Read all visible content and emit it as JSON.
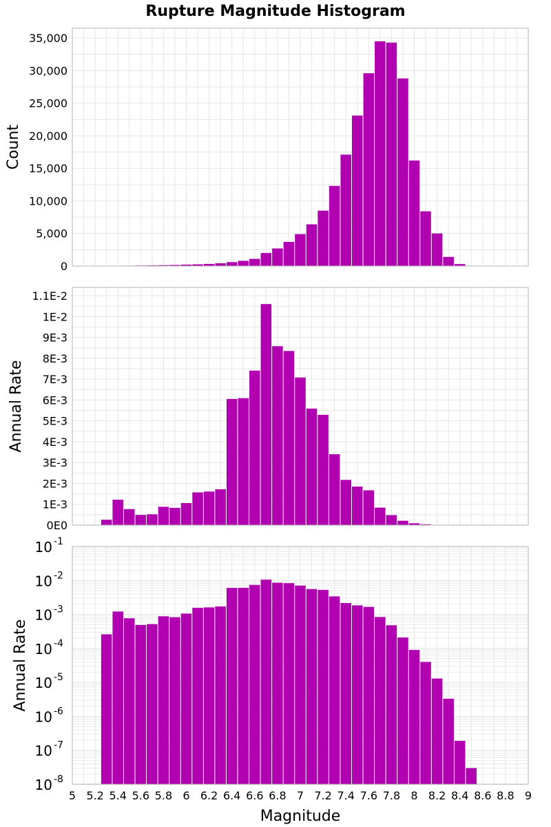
{
  "title": "Rupture Magnitude Histogram",
  "colors": {
    "bar": "#B000B0",
    "grid": "#E6E6E6",
    "frame": "#B4B4B4",
    "bar_edge": "#FFFFFF"
  },
  "chart_data": [
    {
      "type": "bar",
      "title": "Rupture Magnitude Histogram",
      "xlabel": "",
      "ylabel": "Count",
      "xlim": [
        5,
        9
      ],
      "ylim": [
        0,
        36500
      ],
      "yscale": "linear",
      "ytick_values": [
        0,
        5000,
        10000,
        15000,
        20000,
        25000,
        30000,
        35000
      ],
      "ytick_labels": [
        "0",
        "5,000",
        "10,000",
        "15,000",
        "20,000",
        "25,000",
        "30,000",
        "35,000"
      ],
      "bin_width": 0.1,
      "bin_centers": [
        5.3,
        5.4,
        5.5,
        5.6,
        5.7,
        5.8,
        5.9,
        6.0,
        6.1,
        6.2,
        6.3,
        6.4,
        6.5,
        6.6,
        6.7,
        6.8,
        6.9,
        7.0,
        7.1,
        7.2,
        7.3,
        7.4,
        7.5,
        7.6,
        7.7,
        7.8,
        7.9,
        8.0,
        8.1,
        8.2,
        8.3,
        8.4,
        8.5
      ],
      "values": [
        10,
        40,
        60,
        80,
        100,
        130,
        160,
        220,
        260,
        320,
        420,
        600,
        800,
        1100,
        2000,
        2700,
        3700,
        4900,
        6400,
        8500,
        12300,
        17100,
        23100,
        29600,
        34500,
        34300,
        28800,
        16200,
        8400,
        5000,
        1400,
        300,
        10
      ]
    },
    {
      "type": "bar",
      "xlabel": "",
      "ylabel": "Annual Rate",
      "xlim": [
        5,
        9
      ],
      "ylim": [
        0,
        0.0114
      ],
      "yscale": "linear",
      "ytick_values": [
        0,
        0.001,
        0.002,
        0.003,
        0.004,
        0.005,
        0.006,
        0.007,
        0.008,
        0.009,
        0.01,
        0.011
      ],
      "ytick_labels": [
        "0E0",
        "1E-3",
        "2E-3",
        "3E-3",
        "4E-3",
        "5E-3",
        "6E-3",
        "7E-3",
        "8E-3",
        "9E-3",
        "1E-2",
        "1.1E-2"
      ],
      "bin_width": 0.1,
      "bin_centers": [
        5.3,
        5.4,
        5.5,
        5.6,
        5.7,
        5.8,
        5.9,
        6.0,
        6.1,
        6.2,
        6.3,
        6.4,
        6.5,
        6.6,
        6.7,
        6.8,
        6.9,
        7.0,
        7.1,
        7.2,
        7.3,
        7.4,
        7.5,
        7.6,
        7.7,
        7.8,
        7.9,
        8.0,
        8.1,
        8.2,
        8.3,
        8.4,
        8.5
      ],
      "values": [
        0.00026,
        0.00122,
        0.00077,
        0.00049,
        0.00052,
        0.00088,
        0.00083,
        0.00106,
        0.00157,
        0.00161,
        0.00172,
        0.00605,
        0.00609,
        0.00741,
        0.0106,
        0.00858,
        0.00835,
        0.00708,
        0.00559,
        0.00529,
        0.0034,
        0.00217,
        0.00185,
        0.00167,
        0.00084,
        0.00048,
        0.00021,
        9e-05,
        4e-05,
        1.3e-05,
        3.3e-06,
        1.9e-07,
        3e-08
      ]
    },
    {
      "type": "bar",
      "xlabel": "Magnitude",
      "ylabel": "Annual Rate",
      "xlim": [
        5,
        9
      ],
      "ylim_exponents": [
        -8,
        -1
      ],
      "yscale": "log",
      "ytick_mantissa": "10",
      "ytick_exponents": [
        "-1",
        "-2",
        "-3",
        "-4",
        "-5",
        "-6",
        "-7",
        "-8"
      ],
      "xtick_values": [
        5,
        5.2,
        5.4,
        5.6,
        5.8,
        6,
        6.2,
        6.4,
        6.6,
        6.8,
        7,
        7.2,
        7.4,
        7.6,
        7.8,
        8,
        8.2,
        8.4,
        8.6,
        8.8,
        9
      ],
      "xtick_labels": [
        "5",
        "5.2",
        "5.4",
        "5.6",
        "5.8",
        "6",
        "6.2",
        "6.4",
        "6.6",
        "6.8",
        "7",
        "7.2",
        "7.4",
        "7.6",
        "7.8",
        "8",
        "8.2",
        "8.4",
        "8.6",
        "8.8",
        "9"
      ],
      "bin_width": 0.1,
      "bin_centers": [
        5.3,
        5.4,
        5.5,
        5.6,
        5.7,
        5.8,
        5.9,
        6.0,
        6.1,
        6.2,
        6.3,
        6.4,
        6.5,
        6.6,
        6.7,
        6.8,
        6.9,
        7.0,
        7.1,
        7.2,
        7.3,
        7.4,
        7.5,
        7.6,
        7.7,
        7.8,
        7.9,
        8.0,
        8.1,
        8.2,
        8.3,
        8.4,
        8.5
      ],
      "values": [
        0.00026,
        0.00122,
        0.00077,
        0.00049,
        0.00052,
        0.00088,
        0.00083,
        0.00106,
        0.00157,
        0.00161,
        0.00172,
        0.00605,
        0.00609,
        0.00741,
        0.0106,
        0.00858,
        0.00835,
        0.00708,
        0.00559,
        0.00529,
        0.0034,
        0.00217,
        0.00185,
        0.00167,
        0.00084,
        0.00048,
        0.00021,
        9e-05,
        4e-05,
        1.3e-05,
        3.3e-06,
        1.9e-07,
        3e-08
      ]
    }
  ]
}
